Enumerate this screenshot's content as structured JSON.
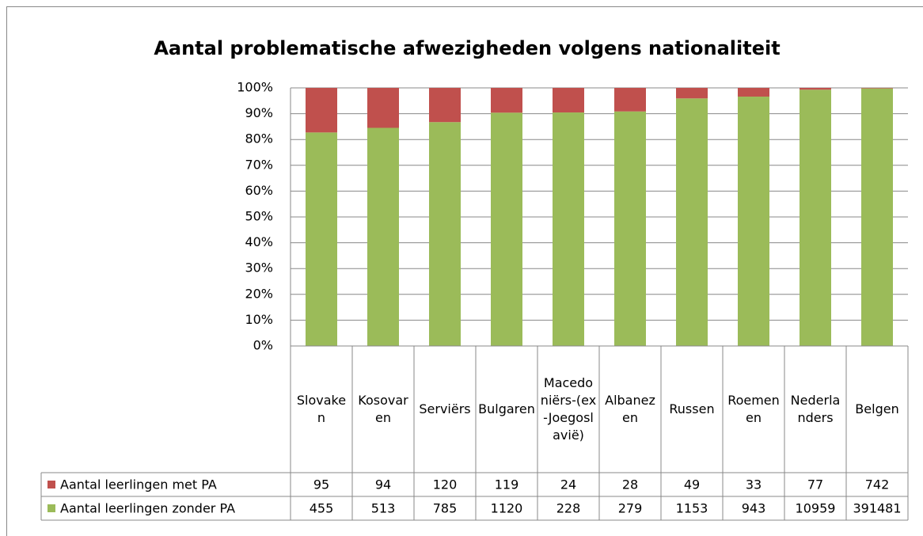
{
  "chart_data": {
    "type": "stacked_percent_bar",
    "title": "Aantal problematische afwezigheden volgens nationaliteit",
    "categories": [
      "Slovaken",
      "Kosovaren",
      "Serviërs",
      "Bulgaren",
      "Macedoniërs-(ex-Joegoslavië)",
      "Albanezen",
      "Russen",
      "Roemenen",
      "Nederlanders",
      "Belgen"
    ],
    "series": [
      {
        "name": "Aantal leerlingen met PA",
        "color": "#c0504d",
        "values": [
          95,
          94,
          120,
          119,
          24,
          28,
          49,
          33,
          77,
          742
        ]
      },
      {
        "name": "Aantal leerlingen zonder PA",
        "color": "#9bbb59",
        "values": [
          455,
          513,
          785,
          1120,
          228,
          279,
          1153,
          943,
          10959,
          391481
        ]
      }
    ],
    "ylim": [
      0,
      100
    ],
    "yticks": [
      {
        "value": 0,
        "label": "0%"
      },
      {
        "value": 10,
        "label": "10%"
      },
      {
        "value": 20,
        "label": "20%"
      },
      {
        "value": 30,
        "label": "30%"
      },
      {
        "value": 40,
        "label": "40%"
      },
      {
        "value": 50,
        "label": "50%"
      },
      {
        "value": 60,
        "label": "60%"
      },
      {
        "value": 70,
        "label": "70%"
      },
      {
        "value": 80,
        "label": "80%"
      },
      {
        "value": 90,
        "label": "90%"
      },
      {
        "value": 100,
        "label": "100%"
      }
    ],
    "grid": true
  }
}
